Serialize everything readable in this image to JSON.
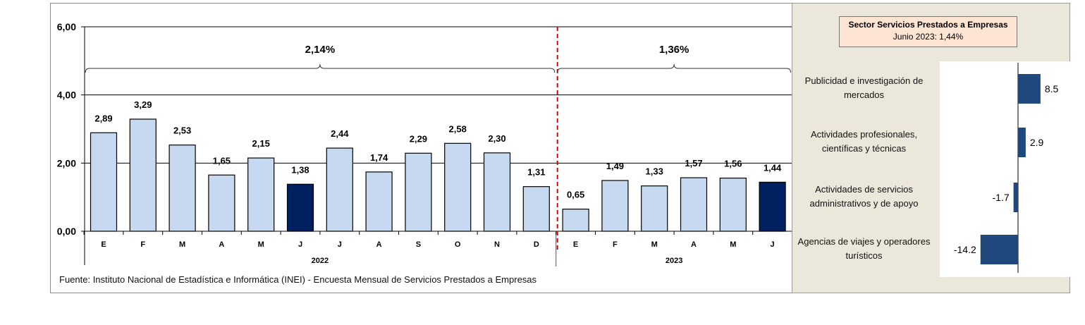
{
  "main_chart": {
    "chart_data": {
      "type": "bar",
      "categories": [
        "E",
        "F",
        "M",
        "A",
        "M",
        "J",
        "J",
        "A",
        "S",
        "O",
        "N",
        "D",
        "E",
        "F",
        "M",
        "A",
        "M",
        "J"
      ],
      "years": [
        {
          "label": "2022",
          "count": 12
        },
        {
          "label": "2023",
          "count": 6
        }
      ],
      "values": [
        2.89,
        3.29,
        2.53,
        1.65,
        2.15,
        1.38,
        2.44,
        1.74,
        2.29,
        2.58,
        2.3,
        1.31,
        0.65,
        1.49,
        1.33,
        1.57,
        1.56,
        1.44
      ],
      "value_labels": [
        "2,89",
        "3,29",
        "2,53",
        "1,65",
        "2,15",
        "1,38",
        "2,44",
        "1,74",
        "2,29",
        "2,58",
        "2,30",
        "1,31",
        "0,65",
        "1,49",
        "1,33",
        "1,57",
        "1,56",
        "1,44"
      ],
      "highlighted": [
        5,
        17
      ],
      "ylim": [
        0,
        6
      ],
      "yticks": [
        "0,00",
        "2,00",
        "4,00",
        "6,00"
      ],
      "brackets": [
        {
          "label": "2,14%",
          "from": 0,
          "to": 11
        },
        {
          "label": "1,36%",
          "from": 12,
          "to": 17
        }
      ],
      "colors": {
        "bar": "#c6d9f1",
        "highlight": "#002060",
        "bracket_divider": "#e00000"
      }
    },
    "source": "Fuente: Instituto Nacional de Estadística e Informática (INEI) - Encuesta Mensual de Servicios Prestados a Empresas"
  },
  "side_chart": {
    "title_line1": "Sector Servicios Prestados a  Empresas",
    "title_line2": "Junio 2023: 1,44%",
    "chart_data": {
      "type": "bar",
      "orientation": "horizontal",
      "categories": [
        "Publicidad e investigación de mercados",
        "Actividades profesionales, científicas y técnicas",
        "Actividades de servicios administrativos y de apoyo",
        "Agencias de viajes y operadores turísticos"
      ],
      "category_lines": [
        [
          "Publicidad e investigación de",
          "mercados"
        ],
        [
          "Actividades profesionales,",
          "científicas y técnicas"
        ],
        [
          "Actividades de servicios",
          "administrativos y de apoyo"
        ],
        [
          "Agencias de viajes y operadores",
          "turísticos"
        ]
      ],
      "values": [
        8.5,
        2.9,
        -1.7,
        -14.2
      ],
      "value_labels": [
        "8.5",
        "2.9",
        "-1.7",
        "-14.2"
      ],
      "colors": {
        "bar": "#1f497d"
      }
    }
  }
}
